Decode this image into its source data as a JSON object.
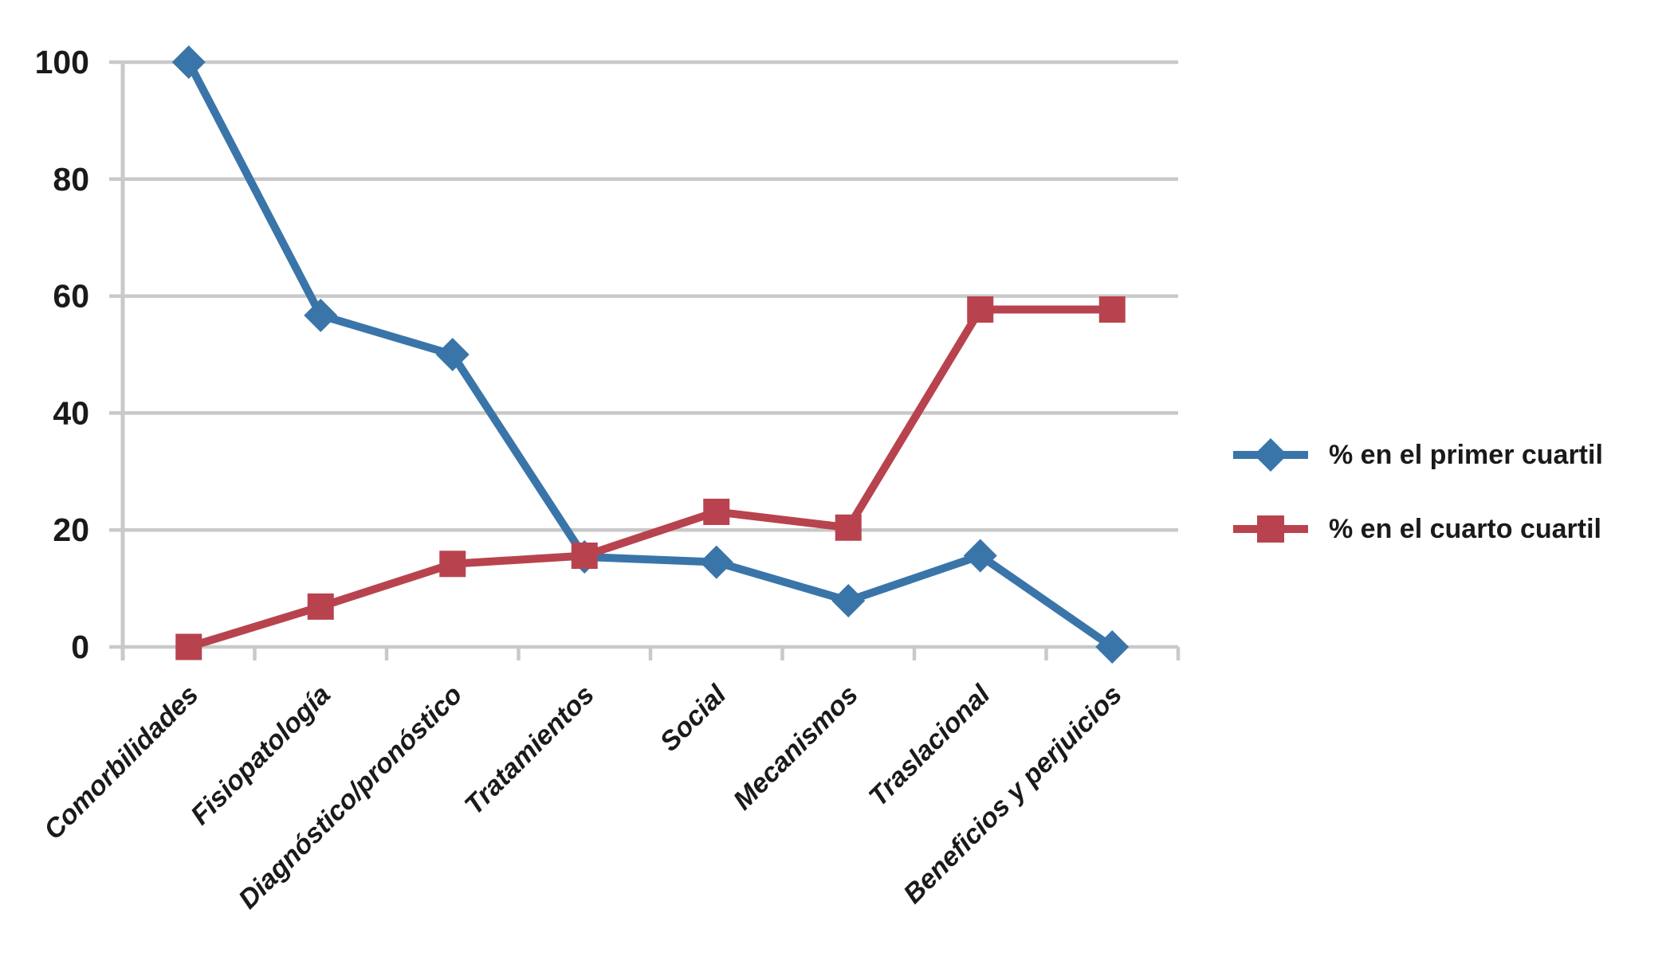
{
  "chart_data": {
    "type": "line",
    "title": "",
    "xlabel": "",
    "ylabel": "",
    "categories": [
      "Comorbilidades",
      "Fisiopatología",
      "Diagnóstico/pronóstico",
      "Tratamientos",
      "Social",
      "Mecanismos",
      "Traslacional",
      "Beneficios y perjuicios"
    ],
    "series": [
      {
        "name": "% en el primer cuartil",
        "marker": "diamond",
        "color": "#3A75A9",
        "values": [
          100,
          56.7,
          50,
          15.4,
          14.5,
          7.9,
          15.6,
          0
        ]
      },
      {
        "name": "% en el cuarto cuartil",
        "marker": "square",
        "color": "#B8434E",
        "values": [
          0,
          6.9,
          14.2,
          15.6,
          23.1,
          20.4,
          57.7,
          57.7
        ]
      }
    ],
    "ylim": [
      0,
      100
    ],
    "yticks": [
      0,
      20,
      40,
      60,
      80,
      100
    ],
    "grid": true,
    "gridline_color": "#C9C9C9",
    "tick_label_color": "#1a1a1a",
    "legend_position": "right"
  }
}
